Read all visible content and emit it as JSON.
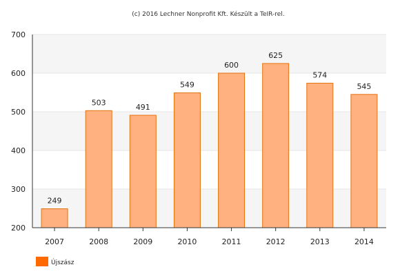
{
  "credit": "(c) 2016 Lechner Nonprofit Kft. Készült a TeIR-rel.",
  "chart_data": {
    "type": "bar",
    "categories": [
      "2007",
      "2008",
      "2009",
      "2010",
      "2011",
      "2012",
      "2013",
      "2014"
    ],
    "series": [
      {
        "name": "Újszász",
        "values": [
          249,
          503,
          491,
          549,
          600,
          625,
          574,
          545
        ]
      }
    ],
    "ylim": [
      200,
      700
    ],
    "yticks": [
      200,
      300,
      400,
      500,
      600,
      700
    ],
    "grid": true,
    "legend_position": "bottom-left",
    "colors": {
      "bar_fill": "#ffb27f",
      "bar_stroke": "#e8700e",
      "legend_swatch": "#ff6a00",
      "band_fill": "#f5f5f5",
      "axis": "#333333"
    }
  }
}
